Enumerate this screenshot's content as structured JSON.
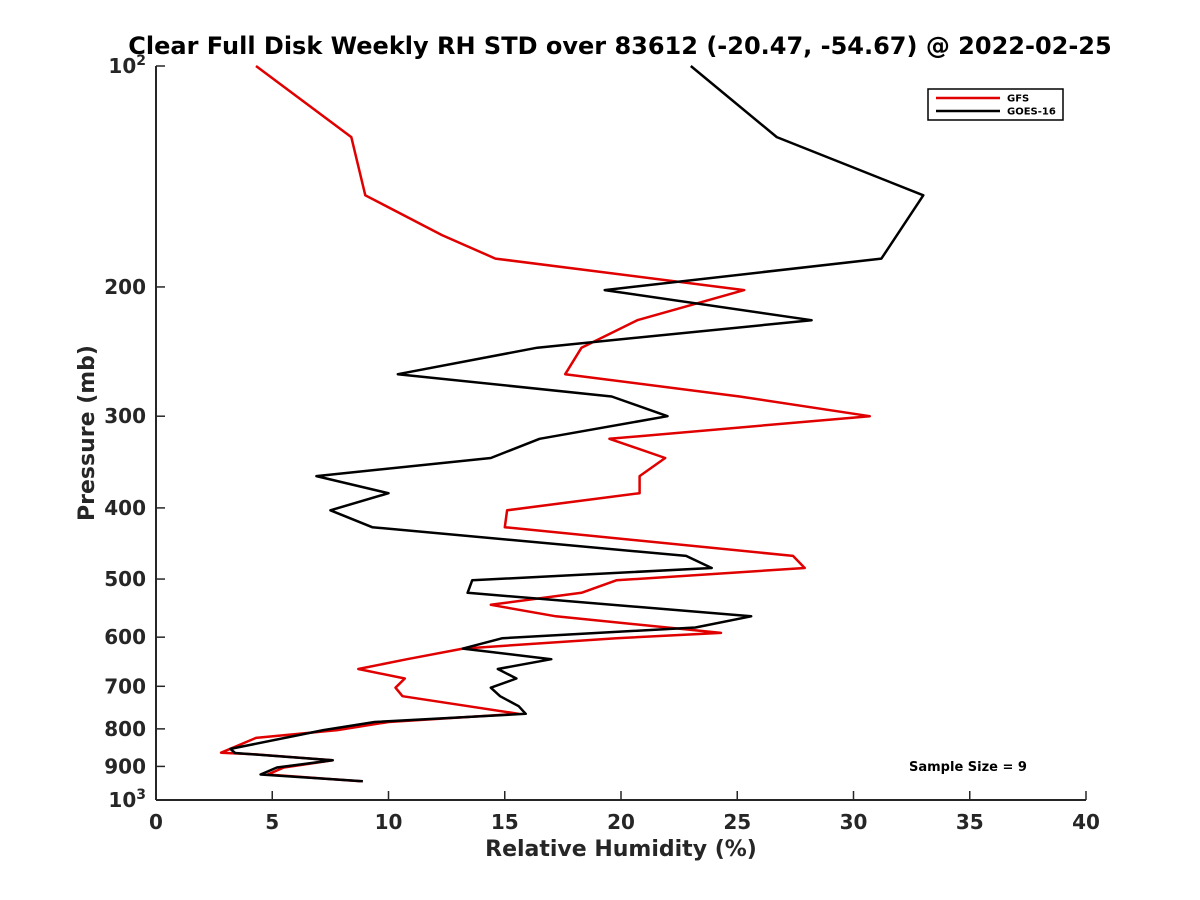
{
  "chart_data": {
    "type": "line",
    "title": "Clear Full Disk Weekly RH STD over 83612 (-20.47, -54.67) @ 2022-02-25",
    "xlabel": "Relative Humidity (%)",
    "ylabel": "Pressure (mb)",
    "xlim": [
      0,
      40
    ],
    "ylim": [
      100,
      1000
    ],
    "y_scale": "log",
    "y_reversed": true,
    "grid": false,
    "legend_position": "top-right",
    "x_ticks": [
      "0",
      "5",
      "10",
      "15",
      "20",
      "25",
      "30",
      "35",
      "40"
    ],
    "y_ticks": [
      {
        "value": 100,
        "base": "10",
        "exp": "2"
      },
      {
        "value": 200,
        "label": "200"
      },
      {
        "value": 300,
        "label": "300"
      },
      {
        "value": 400,
        "label": "400"
      },
      {
        "value": 500,
        "label": "500"
      },
      {
        "value": 600,
        "label": "600"
      },
      {
        "value": 700,
        "label": "700"
      },
      {
        "value": 800,
        "label": "800"
      },
      {
        "value": 900,
        "label": "900"
      },
      {
        "value": 1000,
        "base": "10",
        "exp": "3"
      }
    ],
    "annotation": "Sample Size = 9",
    "series": [
      {
        "name": "GFS",
        "color": "#e00000",
        "points": [
          [
            4.3,
            100
          ],
          [
            8.4,
            125
          ],
          [
            9.0,
            150
          ],
          [
            12.3,
            170
          ],
          [
            14.6,
            183
          ],
          [
            25.3,
            202
          ],
          [
            20.7,
            222
          ],
          [
            18.3,
            242
          ],
          [
            17.6,
            263
          ],
          [
            25.1,
            282
          ],
          [
            30.7,
            300
          ],
          [
            19.5,
            322
          ],
          [
            21.9,
            342
          ],
          [
            20.8,
            362
          ],
          [
            20.8,
            382
          ],
          [
            15.1,
            403
          ],
          [
            15.0,
            425
          ],
          [
            27.4,
            465
          ],
          [
            27.9,
            483
          ],
          [
            19.8,
            502
          ],
          [
            18.3,
            522
          ],
          [
            14.4,
            542
          ],
          [
            17.2,
            562
          ],
          [
            24.3,
            592
          ],
          [
            19.8,
            602
          ],
          [
            13.2,
            622
          ],
          [
            10.8,
            643
          ],
          [
            8.7,
            663
          ],
          [
            10.7,
            683
          ],
          [
            10.3,
            703
          ],
          [
            10.6,
            722
          ],
          [
            15.6,
            763
          ],
          [
            10.0,
            783
          ],
          [
            7.8,
            803
          ],
          [
            4.3,
            823
          ],
          [
            2.8,
            862
          ],
          [
            4.1,
            866
          ],
          [
            7.6,
            883
          ],
          [
            5.5,
            903
          ],
          [
            4.8,
            923
          ],
          [
            8.8,
            943
          ]
        ]
      },
      {
        "name": "GOES-16",
        "color": "#000000",
        "points": [
          [
            23.0,
            100
          ],
          [
            26.7,
            125
          ],
          [
            33.0,
            150
          ],
          [
            31.2,
            183
          ],
          [
            19.3,
            202
          ],
          [
            28.2,
            222
          ],
          [
            16.4,
            242
          ],
          [
            10.4,
            263
          ],
          [
            19.6,
            282
          ],
          [
            22.0,
            300
          ],
          [
            16.5,
            322
          ],
          [
            14.4,
            342
          ],
          [
            6.9,
            362
          ],
          [
            10.0,
            382
          ],
          [
            7.5,
            403
          ],
          [
            9.3,
            425
          ],
          [
            22.8,
            465
          ],
          [
            23.9,
            483
          ],
          [
            13.6,
            502
          ],
          [
            13.4,
            522
          ],
          [
            25.6,
            562
          ],
          [
            23.2,
            582
          ],
          [
            14.9,
            602
          ],
          [
            13.2,
            622
          ],
          [
            17.0,
            643
          ],
          [
            14.7,
            663
          ],
          [
            15.5,
            683
          ],
          [
            14.4,
            703
          ],
          [
            14.8,
            722
          ],
          [
            15.6,
            745
          ],
          [
            15.9,
            763
          ],
          [
            9.4,
            783
          ],
          [
            7.2,
            803
          ],
          [
            3.2,
            852
          ],
          [
            3.4,
            863
          ],
          [
            7.6,
            883
          ],
          [
            5.2,
            903
          ],
          [
            4.5,
            923
          ],
          [
            8.9,
            943
          ]
        ]
      }
    ]
  }
}
